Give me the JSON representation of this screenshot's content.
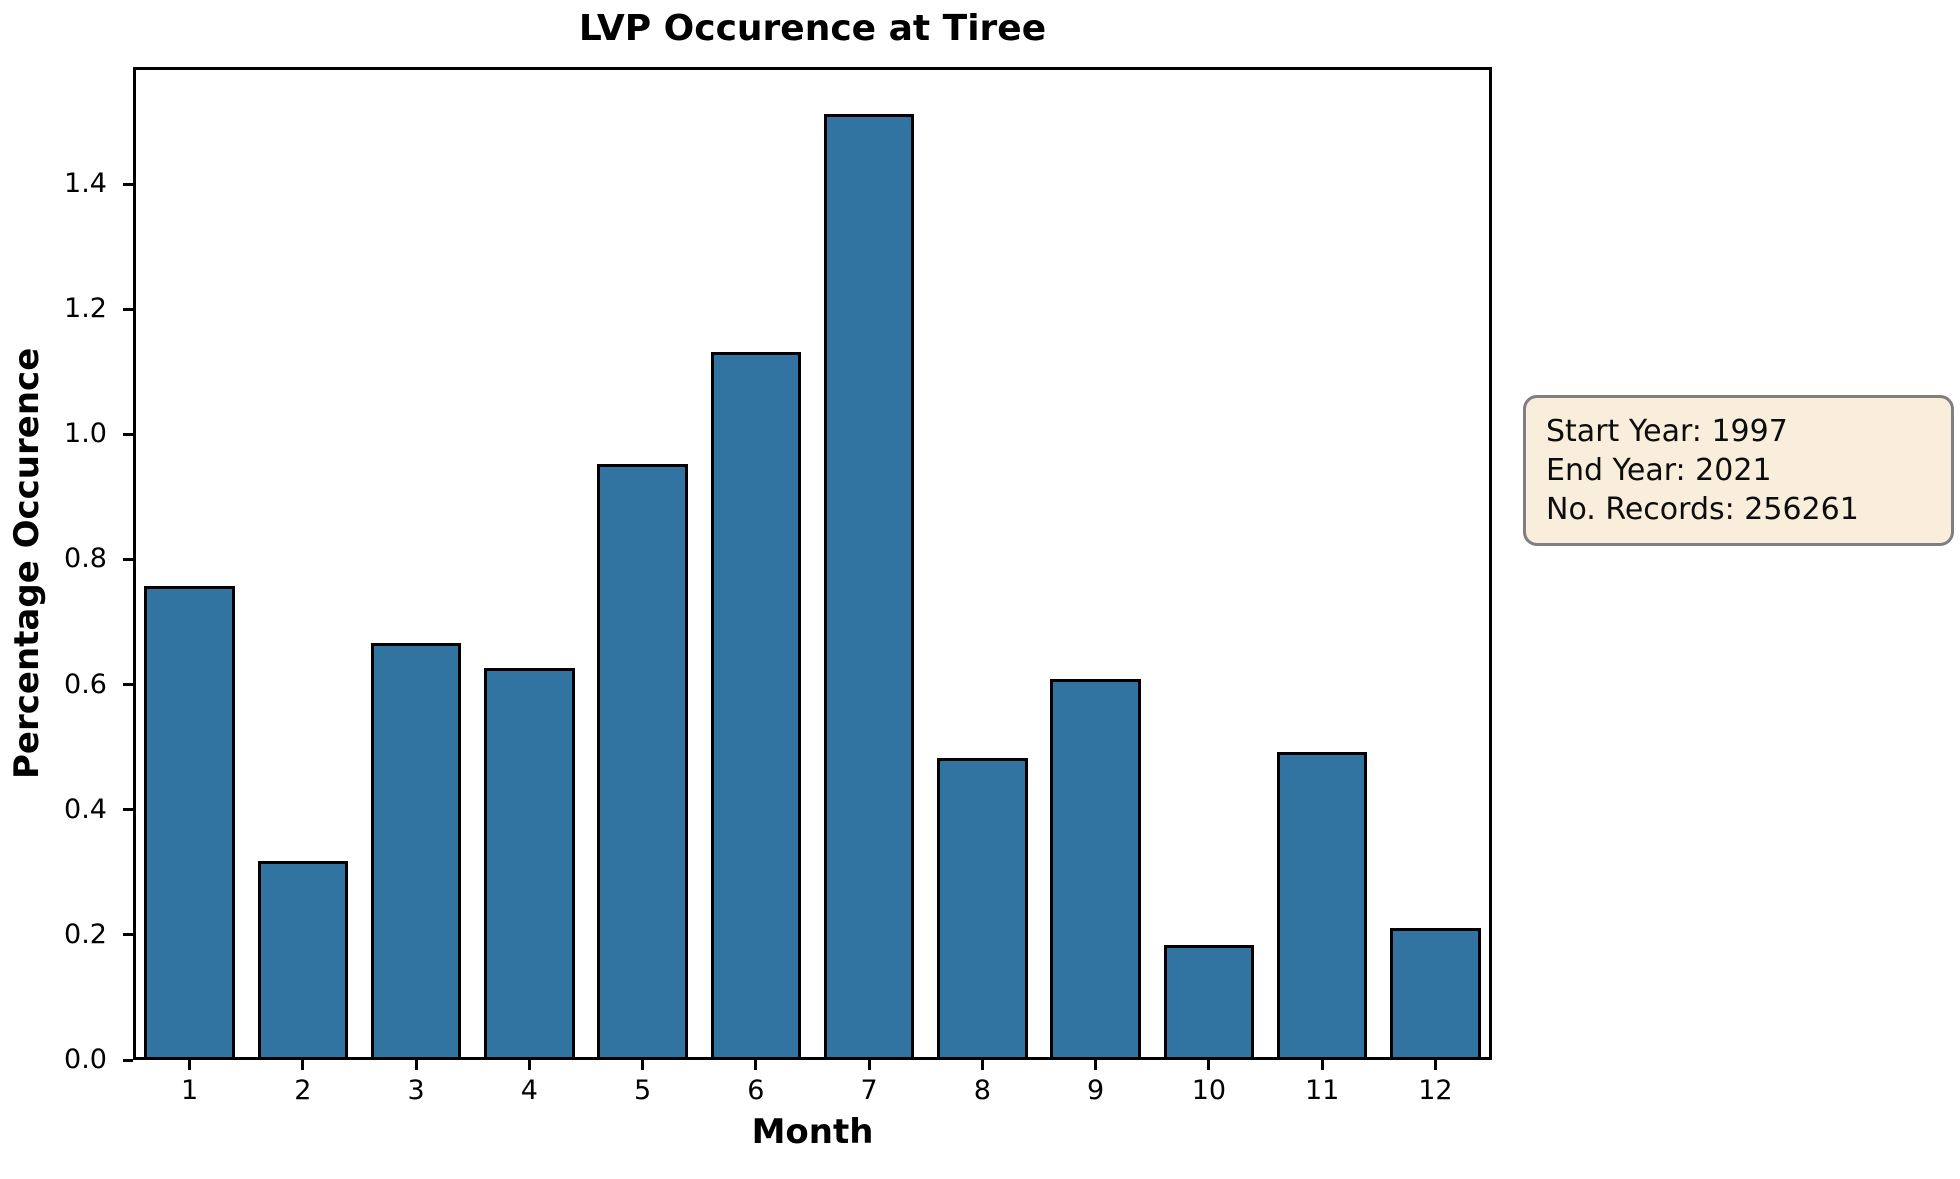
{
  "title": "LVP Occurence at Tiree",
  "colors": {
    "bar_fill": "#3274a1",
    "bar_edge": "#000000",
    "axis": "#000000",
    "annotation_bg": "#f8eedb",
    "annotation_border": "#7f7f7f",
    "text": "#000000"
  },
  "annotation": {
    "lines": [
      "Start Year: 1997",
      "End Year: 2021",
      "No. Records: 256261"
    ]
  },
  "chart_data": {
    "type": "bar",
    "title": "LVP Occurence at Tiree",
    "xlabel": "Month",
    "ylabel": "Percentage Occurence",
    "categories": [
      "1",
      "2",
      "3",
      "4",
      "5",
      "6",
      "7",
      "8",
      "9",
      "10",
      "11",
      "12"
    ],
    "values": [
      0.757,
      0.318,
      0.667,
      0.627,
      0.953,
      1.132,
      1.512,
      0.483,
      0.609,
      0.184,
      0.492,
      0.211
    ],
    "ytick_labels": [
      "0.0",
      "0.2",
      "0.4",
      "0.6",
      "0.8",
      "1.0",
      "1.2",
      "1.4"
    ],
    "ylim": [
      0,
      1.587
    ],
    "bar_width_fraction": 0.8,
    "grid": false,
    "legend": null,
    "annotation_text": "Start Year: 1997\nEnd Year: 2021\nNo. Records: 256261"
  }
}
